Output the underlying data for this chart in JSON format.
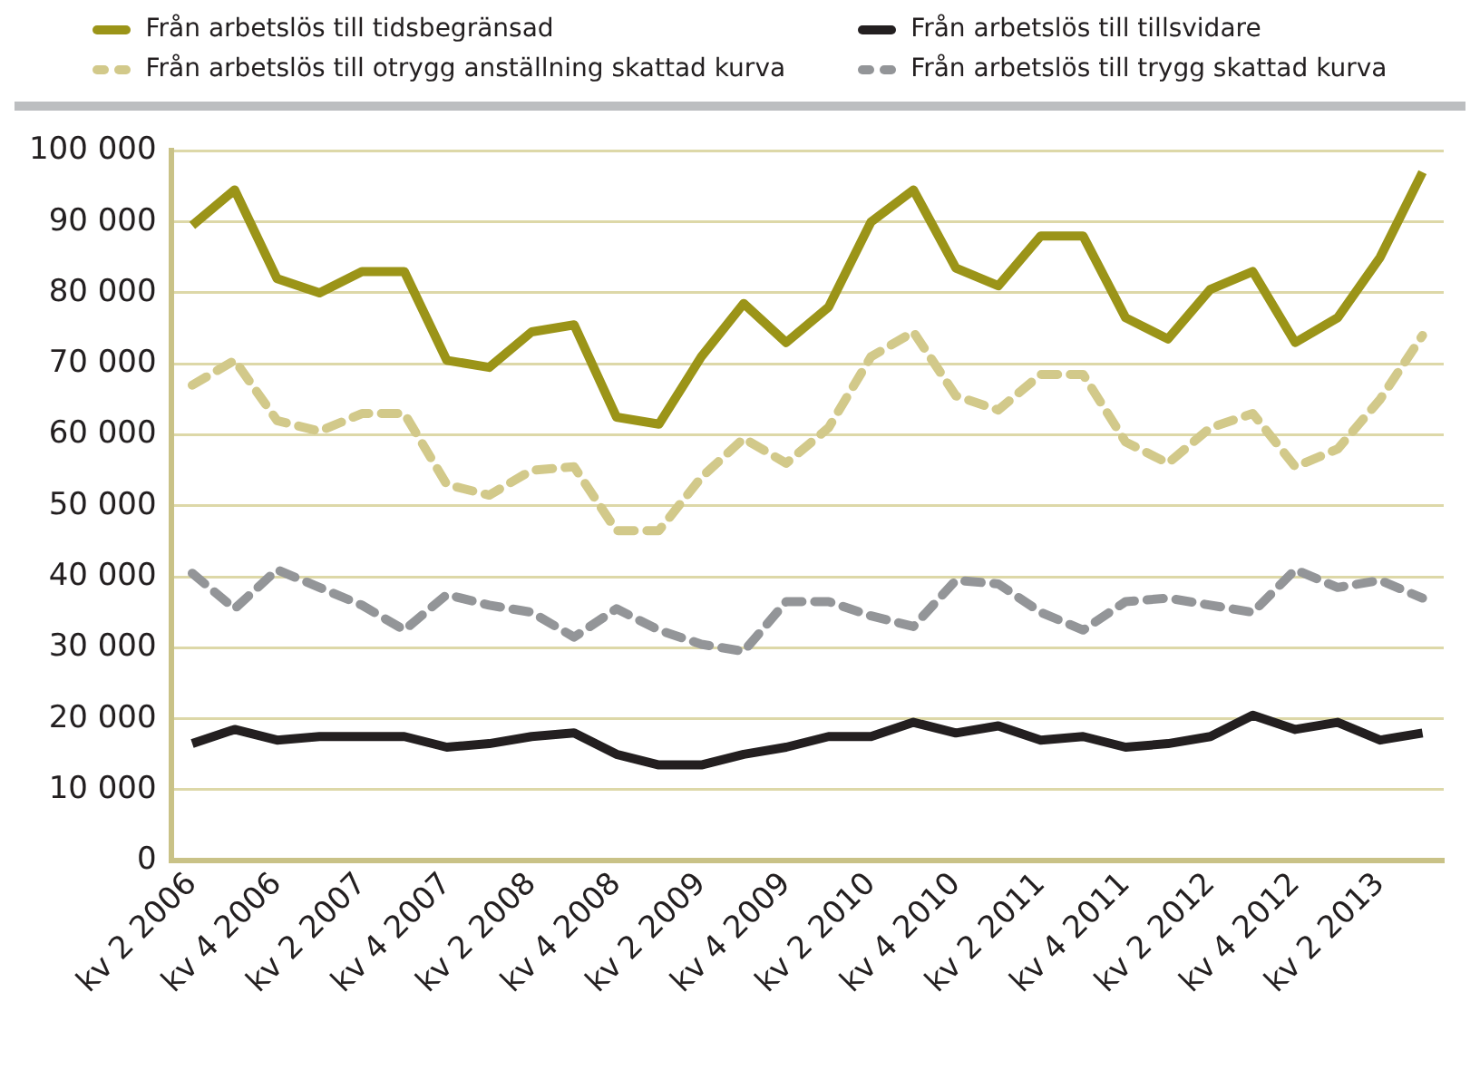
{
  "chart_data": {
    "type": "line",
    "categories": [
      "kv 2 2006",
      null,
      "kv 4 2006",
      null,
      "kv 2 2007",
      null,
      "kv 4 2007",
      null,
      "kv 2 2008",
      null,
      "kv 4 2008",
      null,
      "kv 2 2009",
      null,
      "kv 4 2009",
      null,
      "kv 2 2010",
      null,
      "kv 4 2010",
      null,
      "kv 2 2011",
      null,
      "kv 4 2011",
      null,
      "kv 2 2012",
      null,
      "kv 4 2012",
      null,
      "kv 2 2013",
      null
    ],
    "series": [
      {
        "name": "Från arbetslös till tidsbegränsad",
        "color": "#9b9418",
        "line_style": "solid",
        "values": [
          89500,
          94500,
          82000,
          80000,
          83000,
          83000,
          70500,
          69500,
          74500,
          75500,
          62500,
          61500,
          71000,
          78500,
          73000,
          78000,
          90000,
          94500,
          83500,
          81000,
          88000,
          88000,
          76500,
          73500,
          80500,
          83000,
          73000,
          76500,
          85000,
          97000
        ]
      },
      {
        "name": "Från arbetslös till tillsvidare",
        "color": "#231f20",
        "line_style": "solid",
        "values": [
          16500,
          18500,
          17000,
          17500,
          17500,
          17500,
          16000,
          16500,
          17500,
          18000,
          15000,
          13500,
          13500,
          15000,
          16000,
          17500,
          17500,
          19500,
          18000,
          19000,
          17000,
          17500,
          16000,
          16500,
          17500,
          20500,
          18500,
          19500,
          17000,
          18000
        ]
      },
      {
        "name": "Från arbetslös till otrygg anställning skattad kurva",
        "color": "#d2c98a",
        "line_style": "dashed",
        "values": [
          67000,
          70500,
          62000,
          60500,
          63000,
          63000,
          53000,
          51500,
          55000,
          55500,
          46500,
          46500,
          54000,
          59500,
          56000,
          61000,
          71000,
          74500,
          65500,
          63500,
          68500,
          68500,
          59000,
          56000,
          61000,
          63000,
          55500,
          58000,
          65000,
          74000
        ]
      },
      {
        "name": "Från arbetslös till trygg skattad kurva",
        "color": "#939598",
        "line_style": "dashed",
        "values": [
          40500,
          35500,
          41000,
          38500,
          36000,
          32500,
          37500,
          36000,
          35000,
          31500,
          35500,
          32500,
          30500,
          29500,
          36500,
          36500,
          34500,
          33000,
          39500,
          39000,
          35000,
          32500,
          36500,
          37000,
          36000,
          35000,
          41000,
          38500,
          39500,
          37000
        ]
      }
    ],
    "ylim": [
      0,
      100000
    ],
    "yticks": [
      {
        "value": 0,
        "label": "0"
      },
      {
        "value": 10000,
        "label": "10 000"
      },
      {
        "value": 20000,
        "label": "20 000"
      },
      {
        "value": 30000,
        "label": "30 000"
      },
      {
        "value": 40000,
        "label": "40 000"
      },
      {
        "value": 50000,
        "label": "50 000"
      },
      {
        "value": 60000,
        "label": "60 000"
      },
      {
        "value": 70000,
        "label": "70 000"
      },
      {
        "value": 80000,
        "label": "80 000"
      },
      {
        "value": 90000,
        "label": "90 000"
      },
      {
        "value": 100000,
        "label": "100 000"
      }
    ],
    "grid": "y",
    "legend": "top",
    "marker": "none"
  }
}
